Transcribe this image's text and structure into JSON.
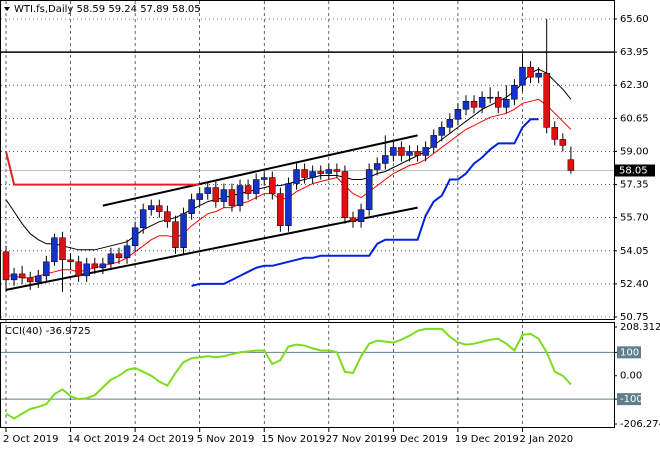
{
  "chart_data": {
    "type": "candlestick",
    "title": "WTI.fs,Daily",
    "categories": [
      "2 Oct 2019",
      null,
      null,
      null,
      null,
      null,
      null,
      null,
      "14 Oct 2019",
      null,
      null,
      null,
      null,
      null,
      null,
      null,
      "24 Oct 2019",
      null,
      null,
      null,
      null,
      null,
      null,
      null,
      "5 Nov 2019",
      null,
      null,
      null,
      null,
      null,
      null,
      null,
      "15 Nov 2019",
      null,
      null,
      null,
      null,
      null,
      null,
      null,
      "27 Nov 2019",
      null,
      null,
      null,
      null,
      null,
      null,
      null,
      "9 Dec 2019",
      null,
      null,
      null,
      null,
      null,
      null,
      null,
      "19 Dec 2019",
      null,
      null,
      null,
      null,
      null,
      null,
      null,
      "2 Jan 2020",
      null,
      null,
      null,
      null,
      null,
      null
    ],
    "candles": {
      "up_color": "#1432c8",
      "down_color": "#e01010",
      "open": [
        54.0,
        52.6,
        52.9,
        52.7,
        52.5,
        52.8,
        53.5,
        54.7,
        53.6,
        53.5,
        52.8,
        53.4,
        53.2,
        53.4,
        53.9,
        53.7,
        54.3,
        55.2,
        56.1,
        56.3,
        56.0,
        55.5,
        54.2,
        55.9,
        56.6,
        56.9,
        57.2,
        56.5,
        57.1,
        56.3,
        57.3,
        56.9,
        57.6,
        57.7,
        56.9,
        55.3,
        57.4,
        58.1,
        57.7,
        58.0,
        57.9,
        58.1,
        58.0,
        55.7,
        55.5,
        56.1,
        58.1,
        58.4,
        58.8,
        59.2,
        58.8,
        59.0,
        58.8,
        59.2,
        59.8,
        60.2,
        60.6,
        61.1,
        61.5,
        61.2,
        61.7,
        61.7,
        61.2,
        61.6,
        62.3,
        63.2,
        62.7,
        62.9,
        60.2,
        59.6,
        58.59
      ],
      "high": [
        54.3,
        53.2,
        53.3,
        53.0,
        53.1,
        53.8,
        54.9,
        55.0,
        53.9,
        53.8,
        53.7,
        53.7,
        53.7,
        54.2,
        54.2,
        54.6,
        55.5,
        56.4,
        56.6,
        56.6,
        56.3,
        55.8,
        56.2,
        56.9,
        57.2,
        57.5,
        57.5,
        57.4,
        57.4,
        57.6,
        57.6,
        57.9,
        58.0,
        58.0,
        57.2,
        57.7,
        58.4,
        58.4,
        58.3,
        58.3,
        58.4,
        58.4,
        58.3,
        56.0,
        56.4,
        58.4,
        58.7,
        59.8,
        59.5,
        59.5,
        59.3,
        59.3,
        59.5,
        60.1,
        60.5,
        60.9,
        61.4,
        61.8,
        61.8,
        62.0,
        62.2,
        62.0,
        62.3,
        62.6,
        63.9,
        63.5,
        63.2,
        65.6,
        60.5,
        59.9,
        59.24
      ],
      "low": [
        52.0,
        52.3,
        52.4,
        52.1,
        52.2,
        52.5,
        53.3,
        52.0,
        53.1,
        52.5,
        52.5,
        52.9,
        52.9,
        53.1,
        53.4,
        53.4,
        54.0,
        54.9,
        55.8,
        55.7,
        55.2,
        53.9,
        53.9,
        55.6,
        56.3,
        56.6,
        56.2,
        56.2,
        56.0,
        56.0,
        56.6,
        56.6,
        57.3,
        56.6,
        55.0,
        55.0,
        57.1,
        57.4,
        57.4,
        57.6,
        57.6,
        57.7,
        55.4,
        55.2,
        55.2,
        55.8,
        57.8,
        58.1,
        58.5,
        58.5,
        58.5,
        58.5,
        58.5,
        58.9,
        59.5,
        59.9,
        60.3,
        60.8,
        60.9,
        60.9,
        61.4,
        60.9,
        60.9,
        61.3,
        62.0,
        62.4,
        62.4,
        59.9,
        59.3,
        59.0,
        57.89
      ],
      "close": [
        52.6,
        52.9,
        52.7,
        52.5,
        52.8,
        53.5,
        54.7,
        53.6,
        53.5,
        52.8,
        53.4,
        53.2,
        53.4,
        53.9,
        53.7,
        54.3,
        55.2,
        56.1,
        56.3,
        56.0,
        55.5,
        54.2,
        55.9,
        56.6,
        56.9,
        57.2,
        56.5,
        57.1,
        56.3,
        57.3,
        56.9,
        57.6,
        57.7,
        56.9,
        55.3,
        57.4,
        58.1,
        57.7,
        58.0,
        57.9,
        58.1,
        58.0,
        55.7,
        55.5,
        56.1,
        58.1,
        58.4,
        58.8,
        59.2,
        58.8,
        59.0,
        58.8,
        59.2,
        59.8,
        60.2,
        60.6,
        61.1,
        61.5,
        61.2,
        61.7,
        61.7,
        61.2,
        61.6,
        62.3,
        63.2,
        62.7,
        62.9,
        60.2,
        59.6,
        59.3,
        58.05
      ]
    },
    "series": [
      {
        "color": "#ff0000",
        "values": [
          52.8,
          52.8,
          52.7,
          52.7,
          52.8,
          52.9,
          53.0,
          53.1,
          53.1,
          53.0,
          53.1,
          53.2,
          53.3,
          53.4,
          53.5,
          53.7,
          54.0,
          54.3,
          54.6,
          54.8,
          54.8,
          54.7,
          54.9,
          55.3,
          55.6,
          55.9,
          56.0,
          56.2,
          56.2,
          56.4,
          56.5,
          56.7,
          56.9,
          56.9,
          56.6,
          56.7,
          57.0,
          57.2,
          57.4,
          57.5,
          57.6,
          57.7,
          57.3,
          56.9,
          56.7,
          57.0,
          57.3,
          57.6,
          57.9,
          58.1,
          58.3,
          58.4,
          58.6,
          58.9,
          59.2,
          59.5,
          59.8,
          60.1,
          60.3,
          60.5,
          60.7,
          60.8,
          60.9,
          61.1,
          61.4,
          61.5,
          61.6,
          61.3,
          60.9,
          60.5,
          60.1
        ]
      },
      {
        "color": "#000000",
        "values": [
          56.6,
          56.0,
          55.4,
          54.9,
          54.6,
          54.4,
          54.4,
          54.3,
          54.2,
          54.1,
          54.1,
          54.1,
          54.2,
          54.3,
          54.4,
          54.5,
          54.8,
          55.1,
          55.3,
          55.5,
          55.6,
          55.7,
          55.9,
          56.1,
          56.3,
          56.5,
          56.6,
          56.7,
          56.8,
          56.9,
          57.0,
          57.1,
          57.2,
          57.3,
          57.3,
          57.4,
          57.5,
          57.6,
          57.7,
          57.8,
          57.8,
          57.8,
          57.7,
          57.6,
          57.6,
          57.7,
          57.9,
          58.0,
          58.2,
          58.4,
          58.6,
          58.8,
          59.0,
          59.3,
          59.6,
          59.9,
          60.2,
          60.5,
          60.8,
          61.1,
          61.3,
          61.5,
          61.7,
          62.0,
          62.4,
          62.9,
          63.1,
          62.9,
          62.5,
          62.1,
          61.6
        ]
      },
      {
        "color": "#0022e0",
        "values": [
          null,
          null,
          null,
          null,
          null,
          null,
          null,
          null,
          null,
          null,
          null,
          null,
          null,
          null,
          null,
          null,
          null,
          null,
          null,
          null,
          null,
          null,
          null,
          52.3,
          52.4,
          52.4,
          52.4,
          52.4,
          52.6,
          52.8,
          53.0,
          53.2,
          53.3,
          53.3,
          53.4,
          53.5,
          53.6,
          53.7,
          53.7,
          53.8,
          53.8,
          53.8,
          53.8,
          53.8,
          53.8,
          53.8,
          54.4,
          54.6,
          54.6,
          54.6,
          54.6,
          54.6,
          55.8,
          56.5,
          56.8,
          57.6,
          57.6,
          57.9,
          58.4,
          58.7,
          59.1,
          59.4,
          59.4,
          59.4,
          60.2,
          60.6,
          60.6,
          null,
          null,
          null,
          null
        ]
      },
      {
        "color": "#e02020",
        "values": [
          59.0,
          57.35,
          57.35,
          57.35,
          57.35,
          57.35,
          57.35,
          57.35,
          57.35,
          57.35,
          57.35,
          57.35,
          57.35,
          57.35,
          57.35,
          57.35,
          57.35,
          57.35,
          57.35,
          57.35,
          57.35,
          57.35,
          57.35,
          57.35,
          57.35,
          null,
          null,
          null,
          null,
          null,
          null,
          null,
          null,
          null,
          null,
          null,
          null,
          null,
          null,
          null,
          null,
          null,
          null,
          null,
          null,
          null,
          null,
          null,
          null,
          null,
          null,
          null,
          null,
          null,
          null,
          null,
          null,
          null,
          null,
          null,
          null,
          null,
          null,
          null,
          null,
          null,
          null,
          null,
          null,
          null,
          null
        ]
      }
    ],
    "trendlines": [
      {
        "x": [
          12,
          51
        ],
        "y": [
          56.3,
          59.8
        ]
      },
      {
        "x": [
          0,
          51
        ],
        "y": [
          52.1,
          56.2
        ]
      }
    ],
    "level": 63.95,
    "ylim": [
      50.75,
      65.6
    ],
    "yticks": [
      {
        "value": 65.6,
        "label": "65.60"
      },
      63.95,
      {
        "value": 62.3,
        "label": "62.30"
      },
      60.65,
      {
        "value": 59.0,
        "label": "59.00"
      },
      57.35,
      {
        "value": 55.7,
        "label": "55.70"
      },
      54.05,
      {
        "value": 52.4,
        "label": "52.40"
      },
      50.75
    ],
    "cci": {
      "title": "CCI(40)",
      "color": "#7ddc1f",
      "values": [
        -162,
        -183,
        -162,
        -142,
        -133,
        -121,
        -79,
        -58,
        -88,
        -100,
        -96,
        -83,
        -50,
        -17,
        0,
        25,
        33,
        17,
        0,
        -25,
        -42,
        12,
        58,
        75,
        79,
        83,
        79,
        83,
        92,
        100,
        104,
        108,
        108,
        50,
        67,
        125,
        133,
        129,
        117,
        108,
        108,
        100,
        17,
        12,
        83,
        137,
        150,
        146,
        142,
        154,
        171,
        192,
        200,
        200,
        200,
        167,
        142,
        133,
        137,
        146,
        154,
        158,
        137,
        108,
        175,
        179,
        158,
        100,
        17,
        0,
        -36.9725
      ],
      "ylim": [
        -206.274,
        208.3126
      ],
      "yticks": [
        208.3126,
        100,
        {
          "value": 0,
          "label": "0.00"
        },
        -100,
        -206.274
      ]
    }
  }
}
